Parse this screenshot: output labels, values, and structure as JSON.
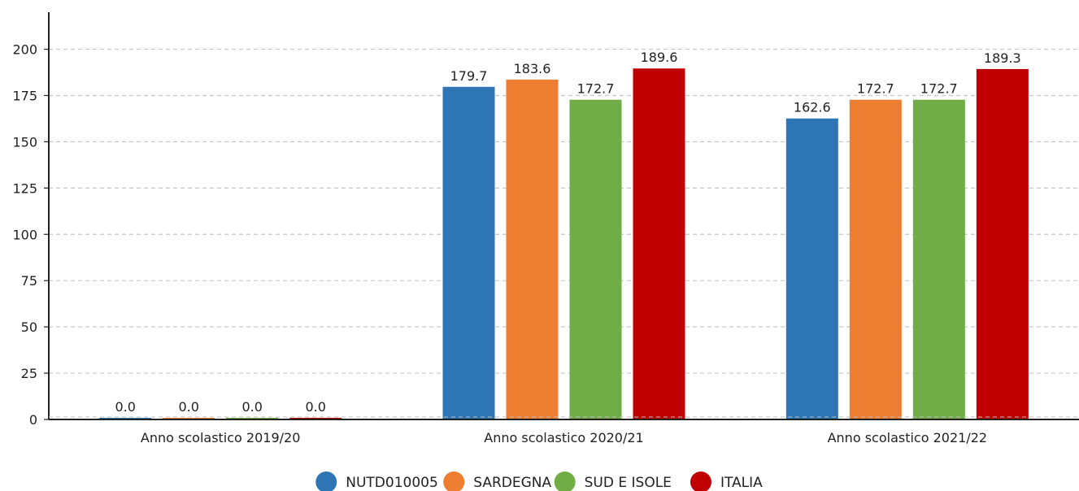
{
  "chart_data": {
    "type": "bar",
    "title": "",
    "xlabel": "",
    "ylabel": "",
    "categories": [
      "Anno scolastico 2019/20",
      "Anno scolastico 2020/21",
      "Anno scolastico 2021/22"
    ],
    "series": [
      {
        "name": "NUTD010005",
        "color": "#2e75b6",
        "values": [
          0.0,
          179.7,
          162.6
        ]
      },
      {
        "name": "SARDEGNA",
        "color": "#ed7d31",
        "values": [
          0.0,
          183.6,
          172.7
        ]
      },
      {
        "name": "SUD E ISOLE",
        "color": "#70ad47",
        "values": [
          0.0,
          172.7,
          172.7
        ]
      },
      {
        "name": "ITALIA",
        "color": "#c00000",
        "values": [
          0.0,
          189.6,
          189.3
        ]
      }
    ],
    "yticks": [
      0,
      25,
      50,
      75,
      100,
      125,
      150,
      175,
      200
    ],
    "ylim": [
      0,
      220
    ],
    "grid": true,
    "legend_position": "bottom-center"
  }
}
